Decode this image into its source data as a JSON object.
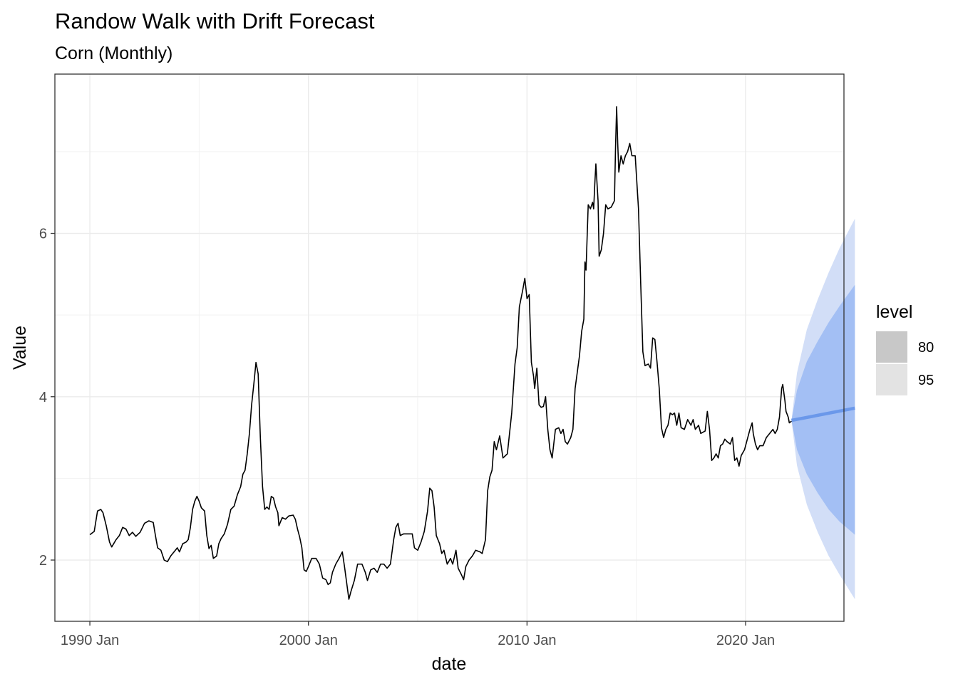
{
  "chart_data": {
    "type": "line",
    "title": "Randow Walk with Drift Forecast",
    "subtitle": "Corn (Monthly)",
    "xlabel": "date",
    "ylabel": "Value",
    "xlim": [
      1988.4,
      2024.5
    ],
    "ylim": [
      1.25,
      7.95
    ],
    "x_ticks": [
      {
        "value": 1990,
        "label": "1990 Jan"
      },
      {
        "value": 2000,
        "label": "2000 Jan"
      },
      {
        "value": 2010,
        "label": "2010 Jan"
      },
      {
        "value": 2020,
        "label": "2020 Jan"
      }
    ],
    "y_ticks": [
      {
        "value": 2,
        "label": "2"
      },
      {
        "value": 4,
        "label": "4"
      },
      {
        "value": 6,
        "label": "6"
      }
    ],
    "grid": true,
    "series": [
      {
        "color": "#000000",
        "points": [
          [
            1990.0,
            2.31
          ],
          [
            1990.2,
            2.35
          ],
          [
            1990.35,
            2.6
          ],
          [
            1990.5,
            2.62
          ],
          [
            1990.6,
            2.58
          ],
          [
            1990.75,
            2.42
          ],
          [
            1990.9,
            2.22
          ],
          [
            1991.0,
            2.16
          ],
          [
            1991.2,
            2.25
          ],
          [
            1991.35,
            2.3
          ],
          [
            1991.5,
            2.4
          ],
          [
            1991.65,
            2.38
          ],
          [
            1991.8,
            2.3
          ],
          [
            1991.95,
            2.34
          ],
          [
            1992.1,
            2.29
          ],
          [
            1992.3,
            2.34
          ],
          [
            1992.5,
            2.45
          ],
          [
            1992.7,
            2.48
          ],
          [
            1992.9,
            2.46
          ],
          [
            1993.0,
            2.3
          ],
          [
            1993.1,
            2.15
          ],
          [
            1993.25,
            2.12
          ],
          [
            1993.4,
            2.0
          ],
          [
            1993.55,
            1.98
          ],
          [
            1993.7,
            2.05
          ],
          [
            1993.85,
            2.1
          ],
          [
            1994.0,
            2.15
          ],
          [
            1994.1,
            2.1
          ],
          [
            1994.25,
            2.2
          ],
          [
            1994.4,
            2.22
          ],
          [
            1994.5,
            2.25
          ],
          [
            1994.6,
            2.4
          ],
          [
            1994.7,
            2.62
          ],
          [
            1994.8,
            2.72
          ],
          [
            1994.9,
            2.78
          ],
          [
            1995.0,
            2.72
          ],
          [
            1995.1,
            2.64
          ],
          [
            1995.25,
            2.6
          ],
          [
            1995.35,
            2.3
          ],
          [
            1995.45,
            2.14
          ],
          [
            1995.55,
            2.18
          ],
          [
            1995.65,
            2.02
          ],
          [
            1995.8,
            2.05
          ],
          [
            1995.9,
            2.2
          ],
          [
            1996.0,
            2.26
          ],
          [
            1996.15,
            2.32
          ],
          [
            1996.3,
            2.44
          ],
          [
            1996.45,
            2.62
          ],
          [
            1996.6,
            2.66
          ],
          [
            1996.75,
            2.8
          ],
          [
            1996.9,
            2.9
          ],
          [
            1997.0,
            3.05
          ],
          [
            1997.1,
            3.1
          ],
          [
            1997.2,
            3.3
          ],
          [
            1997.3,
            3.55
          ],
          [
            1997.4,
            3.9
          ],
          [
            1997.5,
            4.15
          ],
          [
            1997.6,
            4.42
          ],
          [
            1997.7,
            4.28
          ],
          [
            1997.8,
            3.5
          ],
          [
            1997.9,
            2.9
          ],
          [
            1998.0,
            2.62
          ],
          [
            1998.1,
            2.65
          ],
          [
            1998.2,
            2.62
          ],
          [
            1998.3,
            2.78
          ],
          [
            1998.4,
            2.76
          ],
          [
            1998.5,
            2.65
          ],
          [
            1998.6,
            2.58
          ],
          [
            1998.65,
            2.42
          ],
          [
            1998.8,
            2.52
          ],
          [
            1998.95,
            2.5
          ],
          [
            1999.1,
            2.54
          ],
          [
            1999.3,
            2.55
          ],
          [
            1999.4,
            2.5
          ],
          [
            1999.5,
            2.38
          ],
          [
            1999.6,
            2.28
          ],
          [
            1999.7,
            2.15
          ],
          [
            1999.8,
            1.88
          ],
          [
            1999.9,
            1.86
          ],
          [
            2000.0,
            1.92
          ],
          [
            2000.15,
            2.02
          ],
          [
            2000.35,
            2.02
          ],
          [
            2000.5,
            1.95
          ],
          [
            2000.65,
            1.78
          ],
          [
            2000.8,
            1.76
          ],
          [
            2000.9,
            1.7
          ],
          [
            2001.0,
            1.72
          ],
          [
            2001.1,
            1.85
          ],
          [
            2001.25,
            1.95
          ],
          [
            2001.4,
            2.02
          ],
          [
            2001.55,
            2.1
          ],
          [
            2001.65,
            1.92
          ],
          [
            2001.75,
            1.72
          ],
          [
            2001.85,
            1.52
          ],
          [
            2001.95,
            1.62
          ],
          [
            2002.1,
            1.75
          ],
          [
            2002.25,
            1.95
          ],
          [
            2002.45,
            1.95
          ],
          [
            2002.6,
            1.85
          ],
          [
            2002.7,
            1.75
          ],
          [
            2002.85,
            1.88
          ],
          [
            2003.0,
            1.9
          ],
          [
            2003.15,
            1.85
          ],
          [
            2003.3,
            1.95
          ],
          [
            2003.45,
            1.95
          ],
          [
            2003.6,
            1.9
          ],
          [
            2003.75,
            1.95
          ],
          [
            2003.9,
            2.25
          ],
          [
            2004.0,
            2.4
          ],
          [
            2004.1,
            2.45
          ],
          [
            2004.2,
            2.3
          ],
          [
            2004.35,
            2.32
          ],
          [
            2004.6,
            2.32
          ],
          [
            2004.75,
            2.32
          ],
          [
            2004.85,
            2.15
          ],
          [
            2005.0,
            2.12
          ],
          [
            2005.15,
            2.22
          ],
          [
            2005.3,
            2.35
          ],
          [
            2005.45,
            2.6
          ],
          [
            2005.55,
            2.88
          ],
          [
            2005.65,
            2.85
          ],
          [
            2005.75,
            2.65
          ],
          [
            2005.85,
            2.3
          ],
          [
            2006.0,
            2.2
          ],
          [
            2006.1,
            2.08
          ],
          [
            2006.2,
            2.12
          ],
          [
            2006.35,
            1.95
          ],
          [
            2006.5,
            2.02
          ],
          [
            2006.6,
            1.95
          ],
          [
            2006.75,
            2.12
          ],
          [
            2006.85,
            1.9
          ],
          [
            2007.0,
            1.82
          ],
          [
            2007.1,
            1.76
          ],
          [
            2007.2,
            1.92
          ],
          [
            2007.35,
            2.0
          ],
          [
            2007.5,
            2.05
          ],
          [
            2007.65,
            2.12
          ],
          [
            2007.85,
            2.1
          ],
          [
            2007.95,
            2.08
          ],
          [
            2008.1,
            2.25
          ],
          [
            2008.2,
            2.85
          ],
          [
            2008.3,
            3.02
          ],
          [
            2008.4,
            3.1
          ],
          [
            2008.5,
            3.45
          ],
          [
            2008.6,
            3.35
          ],
          [
            2008.75,
            3.52
          ],
          [
            2008.9,
            3.25
          ],
          [
            2009.1,
            3.3
          ],
          [
            2009.2,
            3.55
          ],
          [
            2009.3,
            3.8
          ],
          [
            2009.45,
            4.4
          ],
          [
            2009.55,
            4.6
          ],
          [
            2009.65,
            5.1
          ],
          [
            2009.8,
            5.3
          ],
          [
            2009.9,
            5.45
          ],
          [
            2010.0,
            5.2
          ],
          [
            2010.1,
            5.25
          ],
          [
            2010.2,
            4.42
          ],
          [
            2010.3,
            4.25
          ],
          [
            2010.35,
            4.1
          ],
          [
            2010.45,
            4.35
          ],
          [
            2010.55,
            3.9
          ],
          [
            2010.65,
            3.87
          ],
          [
            2010.75,
            3.88
          ],
          [
            2010.85,
            4.0
          ],
          [
            2010.95,
            3.6
          ],
          [
            2011.05,
            3.35
          ],
          [
            2011.15,
            3.25
          ],
          [
            2011.3,
            3.6
          ],
          [
            2011.45,
            3.62
          ],
          [
            2011.55,
            3.55
          ],
          [
            2011.65,
            3.6
          ],
          [
            2011.75,
            3.45
          ],
          [
            2011.85,
            3.42
          ],
          [
            2012.0,
            3.5
          ],
          [
            2012.1,
            3.6
          ],
          [
            2012.2,
            4.1
          ],
          [
            2012.3,
            4.3
          ],
          [
            2012.4,
            4.5
          ],
          [
            2012.5,
            4.8
          ],
          [
            2012.6,
            4.95
          ],
          [
            2012.65,
            5.65
          ],
          [
            2012.7,
            5.55
          ],
          [
            2012.8,
            6.35
          ],
          [
            2012.9,
            6.3
          ],
          [
            2013.0,
            6.38
          ],
          [
            2013.05,
            6.3
          ],
          [
            2013.1,
            6.6
          ],
          [
            2013.15,
            6.85
          ],
          [
            2013.25,
            6.4
          ],
          [
            2013.3,
            5.72
          ],
          [
            2013.4,
            5.8
          ],
          [
            2013.5,
            6.0
          ],
          [
            2013.6,
            6.35
          ],
          [
            2013.7,
            6.3
          ],
          [
            2013.85,
            6.32
          ],
          [
            2014.0,
            6.4
          ],
          [
            2014.05,
            7.05
          ],
          [
            2014.1,
            7.55
          ],
          [
            2014.15,
            7.1
          ],
          [
            2014.2,
            6.75
          ],
          [
            2014.3,
            6.95
          ],
          [
            2014.4,
            6.85
          ],
          [
            2014.5,
            6.95
          ],
          [
            2014.6,
            7.0
          ],
          [
            2014.7,
            7.1
          ],
          [
            2014.8,
            6.95
          ],
          [
            2014.95,
            6.95
          ],
          [
            2015.1,
            6.3
          ],
          [
            2015.2,
            5.4
          ],
          [
            2015.3,
            4.55
          ],
          [
            2015.4,
            4.38
          ],
          [
            2015.55,
            4.4
          ],
          [
            2015.65,
            4.35
          ],
          [
            2015.75,
            4.72
          ],
          [
            2015.85,
            4.7
          ],
          [
            2015.95,
            4.42
          ],
          [
            2016.05,
            4.1
          ],
          [
            2016.15,
            3.62
          ],
          [
            2016.25,
            3.5
          ],
          [
            2016.35,
            3.6
          ],
          [
            2016.45,
            3.65
          ],
          [
            2016.55,
            3.8
          ],
          [
            2016.65,
            3.78
          ],
          [
            2016.75,
            3.8
          ],
          [
            2016.85,
            3.65
          ],
          [
            2016.95,
            3.8
          ],
          [
            2017.05,
            3.62
          ],
          [
            2017.2,
            3.6
          ],
          [
            2017.35,
            3.72
          ],
          [
            2017.5,
            3.65
          ],
          [
            2017.6,
            3.72
          ],
          [
            2017.7,
            3.6
          ],
          [
            2017.85,
            3.65
          ],
          [
            2017.95,
            3.55
          ],
          [
            2018.15,
            3.58
          ],
          [
            2018.25,
            3.82
          ],
          [
            2018.35,
            3.6
          ],
          [
            2018.45,
            3.22
          ],
          [
            2018.55,
            3.25
          ],
          [
            2018.65,
            3.3
          ],
          [
            2018.75,
            3.25
          ],
          [
            2018.85,
            3.4
          ],
          [
            2018.95,
            3.42
          ],
          [
            2019.05,
            3.48
          ],
          [
            2019.15,
            3.45
          ],
          [
            2019.3,
            3.42
          ],
          [
            2019.4,
            3.5
          ],
          [
            2019.5,
            3.22
          ],
          [
            2019.6,
            3.25
          ],
          [
            2019.7,
            3.15
          ],
          [
            2019.8,
            3.28
          ],
          [
            2019.95,
            3.35
          ],
          [
            2020.1,
            3.5
          ],
          [
            2020.2,
            3.6
          ],
          [
            2020.3,
            3.68
          ],
          [
            2020.35,
            3.55
          ],
          [
            2020.45,
            3.42
          ],
          [
            2020.55,
            3.35
          ],
          [
            2020.65,
            3.4
          ],
          [
            2020.8,
            3.4
          ],
          [
            2020.95,
            3.5
          ],
          [
            2021.1,
            3.55
          ],
          [
            2021.25,
            3.6
          ],
          [
            2021.35,
            3.55
          ],
          [
            2021.45,
            3.6
          ],
          [
            2021.55,
            3.75
          ],
          [
            2021.65,
            4.1
          ],
          [
            2021.7,
            4.15
          ],
          [
            2021.8,
            3.95
          ],
          [
            2021.85,
            3.82
          ],
          [
            2021.95,
            3.75
          ],
          [
            2022.0,
            3.68
          ],
          [
            2022.1,
            3.7
          ]
        ]
      },
      {
        "color": "#6b98ea",
        "points": [
          [
            2022.1,
            3.71
          ],
          [
            2025.0,
            3.86
          ]
        ]
      }
    ],
    "bands": [
      {
        "level": "95",
        "color": "#d2def7",
        "x": [
          2022.1,
          2022.35,
          2022.8,
          2023.3,
          2023.8,
          2024.3,
          2025.0
        ],
        "lower": [
          3.71,
          3.16,
          2.68,
          2.34,
          2.05,
          1.82,
          1.52
        ],
        "upper": [
          3.71,
          4.29,
          4.82,
          5.19,
          5.52,
          5.82,
          6.18
        ]
      },
      {
        "level": "80",
        "color": "#a3bff4",
        "x": [
          2022.1,
          2022.35,
          2022.8,
          2023.3,
          2023.8,
          2024.3,
          2025.0
        ],
        "lower": [
          3.71,
          3.35,
          3.05,
          2.82,
          2.62,
          2.47,
          2.31
        ],
        "upper": [
          3.71,
          4.08,
          4.43,
          4.68,
          4.91,
          5.11,
          5.37
        ]
      }
    ],
    "legend": {
      "title": "level",
      "position": "right",
      "items": [
        {
          "label": "80",
          "color": "#c8c8c8"
        },
        {
          "label": "95",
          "color": "#e3e3e3"
        }
      ]
    }
  }
}
